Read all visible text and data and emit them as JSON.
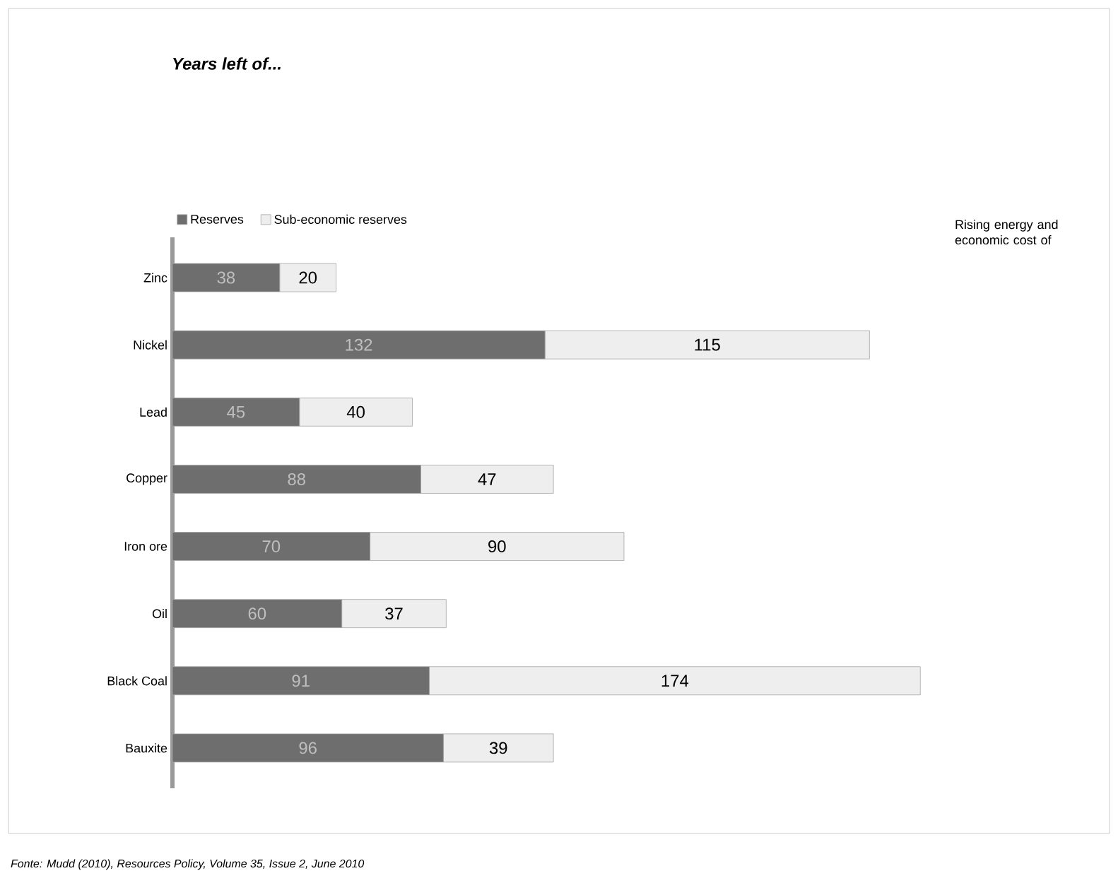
{
  "chart_data": {
    "type": "bar",
    "orientation": "horizontal",
    "stacked": true,
    "data_labels": true,
    "legend": "top left",
    "grid": false,
    "title": "Years left of...",
    "categories": [
      "Zinc",
      "Nickel",
      "Lead",
      "Copper",
      "Iron ore",
      "Oil",
      "Black Coal",
      "Bauxite"
    ],
    "series": [
      {
        "name": "Reserves",
        "color": "#6e6e6e",
        "values": [
          38,
          132,
          45,
          88,
          70,
          60,
          91,
          96
        ]
      },
      {
        "name": "Sub-economic reserves",
        "color": "#eeeeee",
        "values": [
          20,
          115,
          40,
          47,
          90,
          37,
          174,
          39
        ]
      }
    ],
    "annotations": [
      "Rising energy and economic cost of",
      "Fonte: Mudd (2010), Resources Policy, Volume 35, Issue 2, June 2010"
    ]
  }
}
